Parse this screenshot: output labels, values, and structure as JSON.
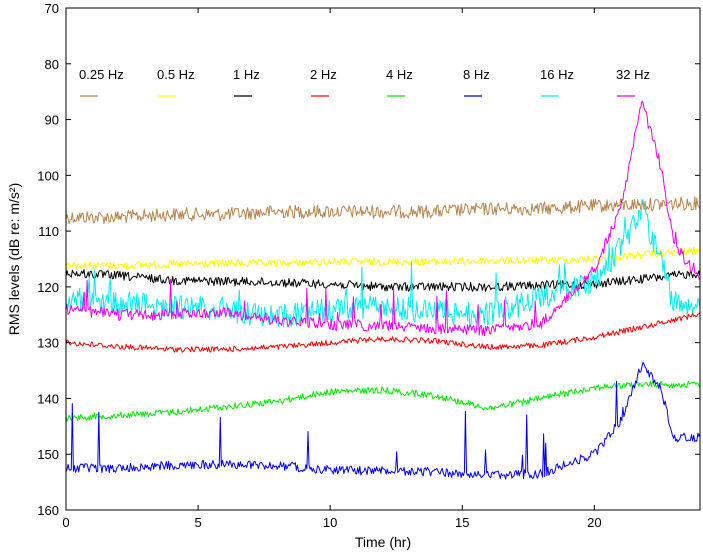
{
  "chart_data": {
    "type": "line",
    "xlabel": "Time (hr)",
    "ylabel": "RMS levels (dB re: m/s²)",
    "xlim": [
      0,
      24
    ],
    "ylim": [
      70,
      160
    ],
    "y_inverted": true,
    "x_ticks": [
      0,
      5,
      10,
      15,
      20
    ],
    "y_ticks": [
      70,
      80,
      90,
      100,
      110,
      120,
      130,
      140,
      150,
      160
    ],
    "grid": false,
    "legend_position": "top",
    "series": [
      {
        "name": "0.25 Hz",
        "color": "#b5834a",
        "noise": 1.2,
        "x": [
          0,
          2,
          4,
          6,
          8,
          10,
          12,
          14,
          16,
          18,
          20,
          22,
          24
        ],
        "values": [
          107.5,
          107.5,
          107,
          107,
          106.5,
          106.5,
          106.5,
          106.5,
          106,
          106,
          105.5,
          105.2,
          105
        ]
      },
      {
        "name": "0.5 Hz",
        "color": "#ffff00",
        "noise": 0.7,
        "x": [
          0,
          2,
          4,
          6,
          8,
          10,
          12,
          14,
          16,
          18,
          20,
          22,
          24
        ],
        "values": [
          116,
          116.2,
          116,
          115.8,
          115.8,
          115.5,
          115.5,
          115.5,
          115.3,
          115.3,
          115,
          114.2,
          113.5
        ]
      },
      {
        "name": "1 Hz",
        "color": "#000000",
        "noise": 0.8,
        "x": [
          0,
          2,
          4,
          6,
          8,
          10,
          12,
          14,
          16,
          18,
          20,
          22,
          24
        ],
        "values": [
          117.5,
          118,
          118.8,
          119,
          119.2,
          119.5,
          120,
          120,
          120,
          119.7,
          119.5,
          118.5,
          117.5
        ]
      },
      {
        "name": "2 Hz",
        "color": "#ff0000",
        "noise": 0.5,
        "x": [
          0,
          2,
          4,
          6,
          8,
          10,
          12,
          14,
          16,
          18,
          20,
          22,
          24
        ],
        "values": [
          130,
          130.7,
          131.2,
          131.2,
          130.8,
          130,
          129.3,
          129.7,
          130.8,
          130.5,
          129,
          127,
          124.8
        ]
      },
      {
        "name": "4 Hz",
        "color": "#00ee00",
        "noise": 0.6,
        "x": [
          0,
          2,
          4,
          6,
          8,
          10,
          12,
          14,
          16,
          18,
          20,
          22,
          24
        ],
        "values": [
          143.5,
          143,
          142.5,
          141.5,
          140.5,
          138.8,
          138.5,
          139.5,
          141.8,
          140,
          138,
          137.5,
          137.5
        ]
      },
      {
        "name": "8 Hz",
        "color": "#0000ee",
        "noise": 0.8,
        "x": [
          0,
          2,
          4,
          6,
          8,
          10,
          12,
          14,
          16,
          18,
          20,
          21,
          21.8,
          22.5,
          23,
          24
        ],
        "values": [
          152.5,
          152.5,
          152,
          151.8,
          152,
          152.8,
          153,
          153.2,
          153.8,
          153.5,
          150,
          144,
          134,
          138,
          147,
          147
        ]
      },
      {
        "name": "16 Hz",
        "color": "#00eeee",
        "noise": 2.2,
        "x": [
          0,
          2,
          4,
          6,
          8,
          10,
          12,
          14,
          16,
          18,
          20,
          21,
          21.8,
          22.5,
          23,
          24
        ],
        "values": [
          122,
          123,
          123.5,
          124,
          125.5,
          124,
          123.5,
          124.5,
          125,
          122,
          119,
          113,
          106,
          115,
          123,
          124
        ]
      },
      {
        "name": "32 Hz",
        "color": "#ee00ee",
        "noise": 1.0,
        "x": [
          0,
          2,
          4,
          6,
          8,
          10,
          12,
          14,
          16,
          18,
          20,
          21,
          21.8,
          22.5,
          23,
          24
        ],
        "values": [
          124,
          125,
          125,
          124.5,
          126,
          126.8,
          127,
          127.5,
          127.8,
          126.5,
          117,
          106,
          87,
          98,
          112,
          119
        ]
      }
    ]
  }
}
